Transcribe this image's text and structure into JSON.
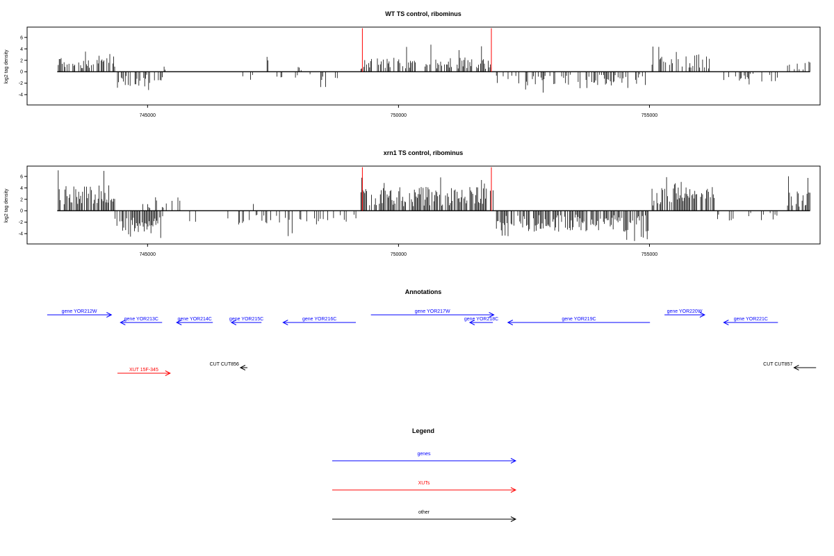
{
  "chart_data": [
    {
      "type": "bar",
      "title": "WT TS control, ribominus",
      "xlabel": "",
      "ylabel": "log2 tag density",
      "xlim": [
        742600,
        758400
      ],
      "ylim": [
        -5.8,
        7.8
      ],
      "xticks": [
        {
          "value": 745000,
          "label": "745000"
        },
        {
          "value": 750000,
          "label": "750000"
        },
        {
          "value": 755000,
          "label": "755000"
        }
      ],
      "yticks": [
        -4,
        -2,
        0,
        2,
        4,
        6
      ],
      "grid": false,
      "series_color": "#000000",
      "markers": {
        "color": "#ff0000",
        "x": [
          749280,
          751850
        ],
        "height": 7.6
      },
      "signal_segments": [
        {
          "start": 743220,
          "end": 744350,
          "strand": "+",
          "max": 4.0,
          "mean": 1.8,
          "density": 0.55,
          "seed": 11
        },
        {
          "start": 744400,
          "end": 745300,
          "strand": "-",
          "max": 3.6,
          "mean": 1.7,
          "density": 0.5,
          "seed": 12
        },
        {
          "start": 745330,
          "end": 745360,
          "strand": "+",
          "max": 1.2,
          "mean": 1.0,
          "density": 1.0,
          "seed": 13
        },
        {
          "start": 746800,
          "end": 747200,
          "strand": "-",
          "max": 2.2,
          "mean": 1.0,
          "density": 0.1,
          "seed": 14
        },
        {
          "start": 747380,
          "end": 747410,
          "strand": "+",
          "max": 2.6,
          "mean": 2.5,
          "density": 1.0,
          "seed": 15
        },
        {
          "start": 747500,
          "end": 748600,
          "strand": "-",
          "max": 2.0,
          "mean": 0.8,
          "density": 0.12,
          "seed": 16
        },
        {
          "start": 748000,
          "end": 748100,
          "strand": "+",
          "max": 1.0,
          "mean": 0.6,
          "density": 0.3,
          "seed": 17
        },
        {
          "start": 748450,
          "end": 748800,
          "strand": "-",
          "max": 3.4,
          "mean": 1.8,
          "density": 0.35,
          "seed": 18
        },
        {
          "start": 749250,
          "end": 751850,
          "strand": "+",
          "max": 4.8,
          "mean": 1.6,
          "density": 0.5,
          "seed": 19
        },
        {
          "start": 751950,
          "end": 753200,
          "strand": "-",
          "max": 3.8,
          "mean": 1.6,
          "density": 0.45,
          "seed": 20
        },
        {
          "start": 753250,
          "end": 755000,
          "strand": "-",
          "max": 3.2,
          "mean": 1.5,
          "density": 0.4,
          "seed": 21
        },
        {
          "start": 755050,
          "end": 756200,
          "strand": "+",
          "max": 4.6,
          "mean": 1.9,
          "density": 0.5,
          "seed": 22
        },
        {
          "start": 756250,
          "end": 757600,
          "strand": "-",
          "max": 2.4,
          "mean": 1.1,
          "density": 0.15,
          "seed": 23
        },
        {
          "start": 757750,
          "end": 758200,
          "strand": "+",
          "max": 2.4,
          "mean": 1.2,
          "density": 0.45,
          "seed": 24
        }
      ]
    },
    {
      "type": "bar",
      "title": "xrn1 TS control, ribominus",
      "xlabel": "",
      "ylabel": "log2 tag density",
      "xlim": [
        742600,
        758400
      ],
      "ylim": [
        -5.8,
        7.8
      ],
      "xticks": [
        {
          "value": 745000,
          "label": "745000"
        },
        {
          "value": 750000,
          "label": "750000"
        },
        {
          "value": 755000,
          "label": "755000"
        }
      ],
      "yticks": [
        -4,
        -2,
        0,
        2,
        4,
        6
      ],
      "grid": false,
      "series_color": "#000000",
      "markers": {
        "color": "#ff0000",
        "x": [
          749280,
          751850
        ],
        "height": 7.6
      },
      "signal_segments": [
        {
          "start": 743220,
          "end": 744350,
          "strand": "+",
          "max": 7.4,
          "mean": 2.8,
          "density": 0.8,
          "seed": 31
        },
        {
          "start": 744350,
          "end": 745300,
          "strand": "-",
          "max": 5.2,
          "mean": 2.6,
          "density": 0.75,
          "seed": 32
        },
        {
          "start": 744500,
          "end": 745700,
          "strand": "+",
          "max": 3.0,
          "mean": 1.2,
          "density": 0.2,
          "seed": 33
        },
        {
          "start": 745800,
          "end": 746000,
          "strand": "-",
          "max": 2.4,
          "mean": 1.4,
          "density": 0.2,
          "seed": 34
        },
        {
          "start": 746600,
          "end": 748500,
          "strand": "-",
          "max": 4.8,
          "mean": 1.5,
          "density": 0.3,
          "seed": 35
        },
        {
          "start": 747050,
          "end": 747200,
          "strand": "+",
          "max": 1.9,
          "mean": 1.5,
          "density": 0.2,
          "seed": 36
        },
        {
          "start": 748550,
          "end": 749200,
          "strand": "-",
          "max": 2.0,
          "mean": 1.0,
          "density": 0.2,
          "seed": 37
        },
        {
          "start": 749250,
          "end": 751900,
          "strand": "+",
          "max": 6.2,
          "mean": 2.6,
          "density": 0.75,
          "seed": 38
        },
        {
          "start": 751950,
          "end": 755000,
          "strand": "-",
          "max": 5.4,
          "mean": 2.3,
          "density": 0.7,
          "seed": 39
        },
        {
          "start": 755050,
          "end": 756300,
          "strand": "+",
          "max": 6.0,
          "mean": 2.6,
          "density": 0.75,
          "seed": 40
        },
        {
          "start": 756300,
          "end": 757600,
          "strand": "-",
          "max": 2.6,
          "mean": 1.2,
          "density": 0.2,
          "seed": 41
        },
        {
          "start": 757750,
          "end": 758200,
          "strand": "+",
          "max": 7.0,
          "mean": 2.2,
          "density": 0.7,
          "seed": 42
        }
      ]
    },
    {
      "type": "annotation-track",
      "title": "Annotations",
      "xlim": [
        742600,
        758400
      ],
      "features": [
        {
          "label": "gene YOR212W",
          "kind": "gene",
          "strand": "+",
          "start": 743000,
          "end": 744280,
          "row": 0
        },
        {
          "label": "gene YOR213C",
          "kind": "gene",
          "strand": "-",
          "start": 744460,
          "end": 745290,
          "row": 1
        },
        {
          "label": "gene YOR214C",
          "kind": "gene",
          "strand": "-",
          "start": 745580,
          "end": 746300,
          "row": 1
        },
        {
          "label": "gene YOR215C",
          "kind": "gene",
          "strand": "-",
          "start": 746670,
          "end": 747270,
          "row": 1
        },
        {
          "label": "gene YOR216C",
          "kind": "gene",
          "strand": "-",
          "start": 747700,
          "end": 749150,
          "row": 1
        },
        {
          "label": "gene YOR217W",
          "kind": "gene",
          "strand": "+",
          "start": 749450,
          "end": 751900,
          "row": 0
        },
        {
          "label": "gene YOR218C",
          "kind": "gene",
          "strand": "-",
          "start": 751420,
          "end": 751880,
          "row": 1
        },
        {
          "label": "gene YOR219C",
          "kind": "gene",
          "strand": "-",
          "start": 752180,
          "end": 755010,
          "row": 1
        },
        {
          "label": "gene YOR220W",
          "kind": "gene",
          "strand": "+",
          "start": 755300,
          "end": 756100,
          "row": 0
        },
        {
          "label": "gene YOR221C",
          "kind": "gene",
          "strand": "-",
          "start": 756480,
          "end": 757560,
          "row": 1
        },
        {
          "label": "CUT CUT856",
          "kind": "other",
          "strand": "-",
          "start": 746850,
          "end": 746990,
          "row": 2
        },
        {
          "label": "CUT CUT857",
          "kind": "other",
          "strand": "-",
          "start": 757880,
          "end": 758320,
          "row": 2
        },
        {
          "label": "XUT 15F-345",
          "kind": "xut",
          "strand": "+",
          "start": 744400,
          "end": 745450,
          "row": 3
        }
      ]
    }
  ],
  "legend": {
    "title": "Legend",
    "items": [
      {
        "label": "genes",
        "color": "#0000ff"
      },
      {
        "label": "XUTs",
        "color": "#ff0000"
      },
      {
        "label": "other",
        "color": "#000000"
      }
    ]
  },
  "colors": {
    "gene": "#0000ff",
    "xut": "#ff0000",
    "other": "#000000",
    "axis": "#000000"
  }
}
